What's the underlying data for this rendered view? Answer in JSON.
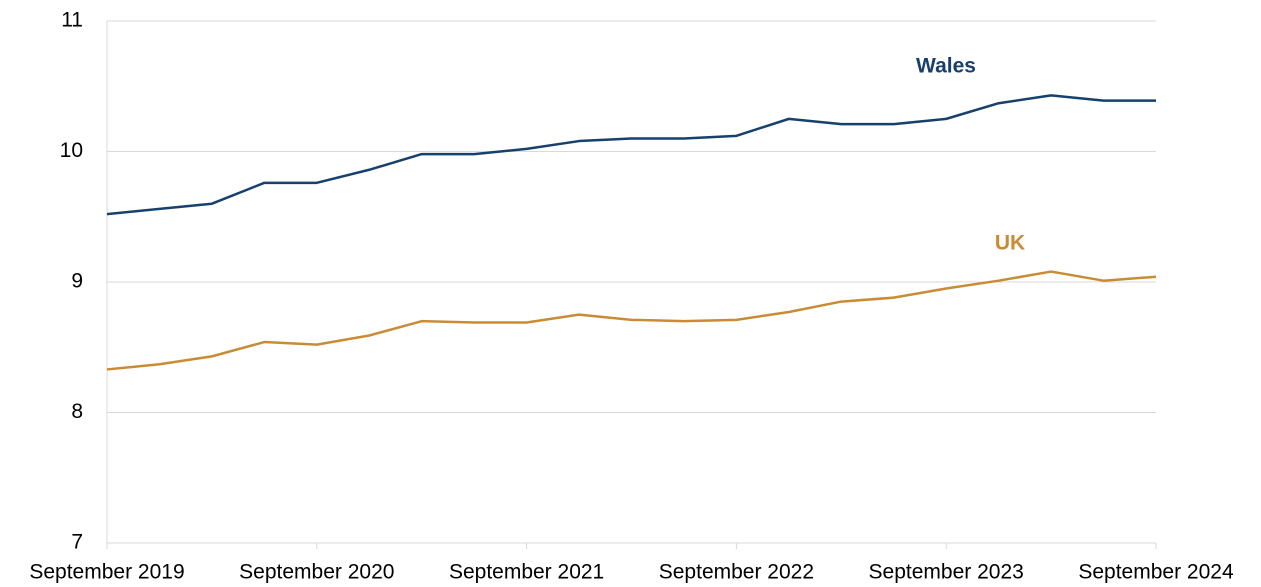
{
  "chart_data": {
    "type": "line",
    "categories": [
      "September 2019",
      null,
      null,
      null,
      "September 2020",
      null,
      null,
      null,
      "September 2021",
      null,
      null,
      null,
      "September 2022",
      null,
      null,
      null,
      "September 2023",
      null,
      null,
      null,
      "September 2024"
    ],
    "series": [
      {
        "name": "Wales",
        "color": "#17406d",
        "values": [
          9.52,
          9.56,
          9.6,
          9.76,
          9.76,
          9.86,
          9.98,
          9.98,
          10.02,
          10.08,
          10.1,
          10.1,
          10.12,
          10.25,
          10.21,
          10.21,
          10.25,
          10.37,
          10.43,
          10.39,
          10.39
        ]
      },
      {
        "name": "UK",
        "color": "#c98c35",
        "values": [
          8.33,
          8.37,
          8.43,
          8.54,
          8.52,
          8.59,
          8.7,
          8.69,
          8.69,
          8.75,
          8.71,
          8.7,
          8.71,
          8.77,
          8.85,
          8.88,
          8.95,
          9.01,
          9.08,
          9.01,
          9.04
        ]
      }
    ],
    "ylim": [
      7,
      11
    ],
    "yticks": [
      7,
      8,
      9,
      10,
      11
    ],
    "grid": true
  }
}
